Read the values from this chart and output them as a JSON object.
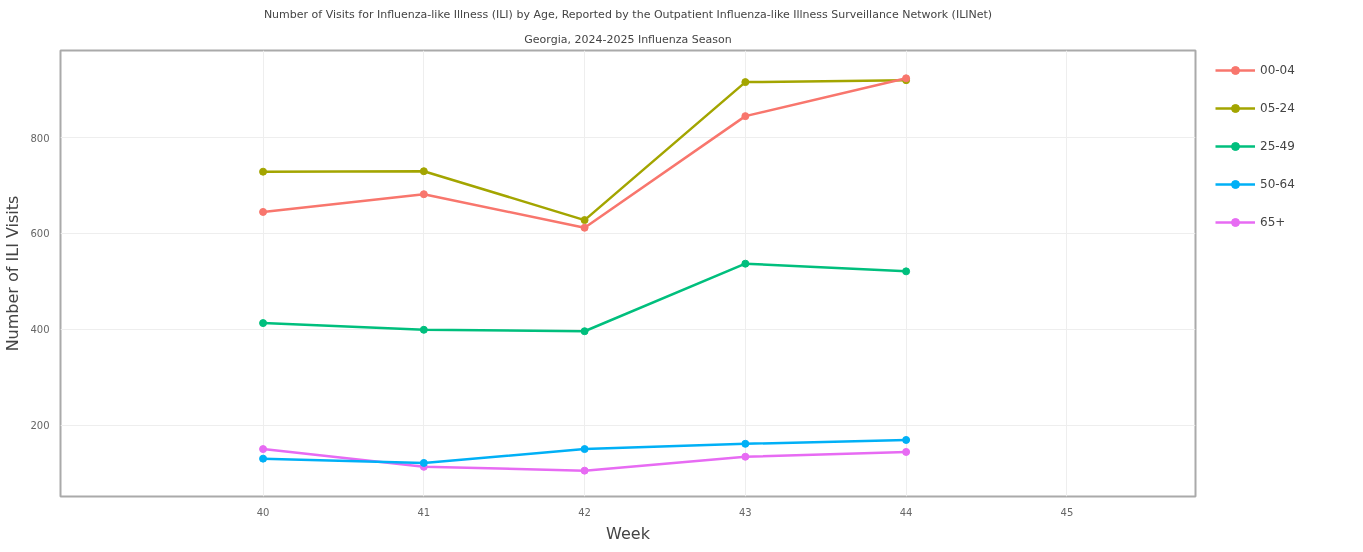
{
  "chart_data": {
    "type": "line",
    "title": "Number of Visits for Influenza-like Illness (ILI) by Age, Reported by the Outpatient Influenza-like Illness Surveillance Network (ILINet)",
    "subtitle": "Georgia, 2024-2025 Influenza Season",
    "xlabel": "Week",
    "ylabel": "Number of ILI Visits",
    "x": [
      40,
      41,
      42,
      43,
      44
    ],
    "xlim": [
      38.74,
      45.8
    ],
    "xticks": [
      40,
      41,
      42,
      43,
      44,
      45
    ],
    "ylim": [
      51,
      982
    ],
    "yticks": [
      200,
      400,
      600,
      800
    ],
    "grid": true,
    "legend": "right",
    "marker": "circle",
    "line_style": "solid",
    "series": [
      {
        "name": "00-04",
        "color": "#f8766d",
        "values": [
          645,
          682,
          612,
          845,
          924
        ]
      },
      {
        "name": "05-24",
        "color": "#a3a500",
        "values": [
          729,
          730,
          628,
          916,
          920
        ]
      },
      {
        "name": "25-49",
        "color": "#00bf7d",
        "values": [
          413,
          399,
          396,
          537,
          521
        ]
      },
      {
        "name": "50-64",
        "color": "#00b0f6",
        "values": [
          130,
          121,
          150,
          161,
          169
        ]
      },
      {
        "name": "65+",
        "color": "#e76bf3",
        "values": [
          150,
          113,
          105,
          134,
          144
        ]
      }
    ]
  }
}
